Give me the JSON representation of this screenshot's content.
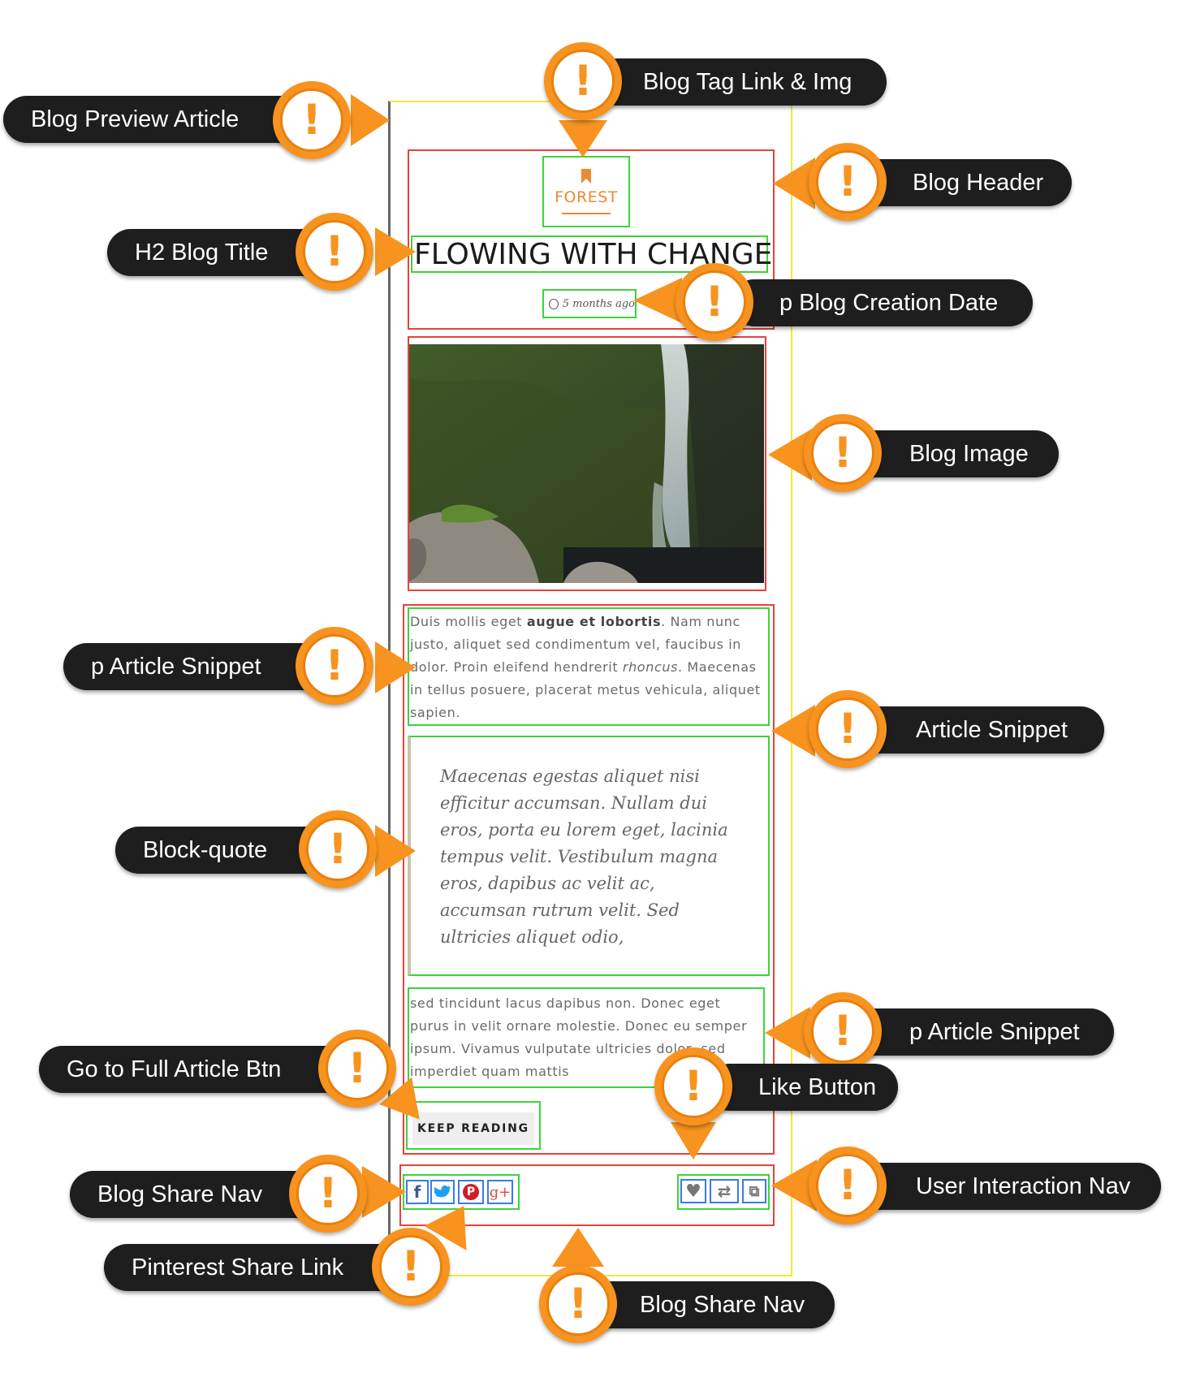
{
  "article": {
    "tag_icon": "bookmark-icon",
    "tag": "FOREST",
    "title": "FLOWING WITH CHANGE",
    "date_icon": "clock-icon",
    "date": "5 months ago",
    "image_alt": "waterfall-photo",
    "snippet1_a": "Duis mollis eget ",
    "snippet1_bold": "augue et lobortis",
    "snippet1_b": ". Nam nunc justo, aliquet sed condimentum vel, faucibus in dolor. Proin eleifend hendrerit ",
    "snippet1_italic": "rhoncus",
    "snippet1_c": ". Maecenas in tellus posuere, placerat metus vehicula, aliquet sapien.",
    "quote": "Maecenas egestas aliquet nisi efficitur accumsan. Nullam dui eros, porta eu lorem eget, lacinia tempus velit. Vestibulum magna eros, dapibus ac velit ac, accumsan rutrum velit. Sed ultricies aliquet odio,",
    "snippet2": "sed tincidunt lacus dapibus non. Donec eget purus in velit ornare molestie. Donec eu semper ipsum. Vivamus vulputate ultricies dolor, sed imperdiet quam mattis",
    "button": "KEEP READING",
    "share": [
      {
        "icon": "facebook-icon",
        "glyph": "f",
        "color": "#3b5998"
      },
      {
        "icon": "twitter-icon",
        "glyph": "🐦",
        "color": "#1da1f2"
      },
      {
        "icon": "pinterest-icon",
        "glyph": "P",
        "color": "#cb2027"
      },
      {
        "icon": "google-plus-icon",
        "glyph": "g+",
        "color": "#dd4b39"
      }
    ],
    "actions": [
      {
        "icon": "heart-icon",
        "glyph": "♥",
        "color": "#777777"
      },
      {
        "icon": "retweet-icon",
        "glyph": "⇄",
        "color": "#777777"
      },
      {
        "icon": "external-link-icon",
        "glyph": "⧉",
        "color": "#777777"
      }
    ]
  },
  "callouts": {
    "blog_preview_article": "Blog Preview Article",
    "blog_tag_link_img": "Blog Tag Link & Img",
    "blog_header": "Blog Header",
    "h2_blog_title": "H2 Blog Title",
    "p_blog_creation_date": "p Blog Creation Date",
    "blog_image": "Blog Image",
    "p_article_snippet_1": "p Article Snippet",
    "article_snippet": "Article Snippet",
    "block_quote": "Block-quote",
    "p_article_snippet_2": "p Article Snippet",
    "go_to_full_article_btn": "Go to Full Article Btn",
    "like_button": "Like Button",
    "blog_share_nav_1": "Blog Share Nav",
    "user_interaction_nav": "User Interaction Nav",
    "pinterest_share_link": "Pinterest Share Link",
    "blog_share_nav_2": "Blog Share Nav"
  },
  "colors": {
    "accent_orange": "#f7931e",
    "tag_orange": "#e98a36",
    "label_bg": "#1e1e1e",
    "outline_yellow": "#ecec3a",
    "outline_red": "#e8423a",
    "outline_green": "#3cd33c",
    "outline_blue": "#3a7be8"
  }
}
